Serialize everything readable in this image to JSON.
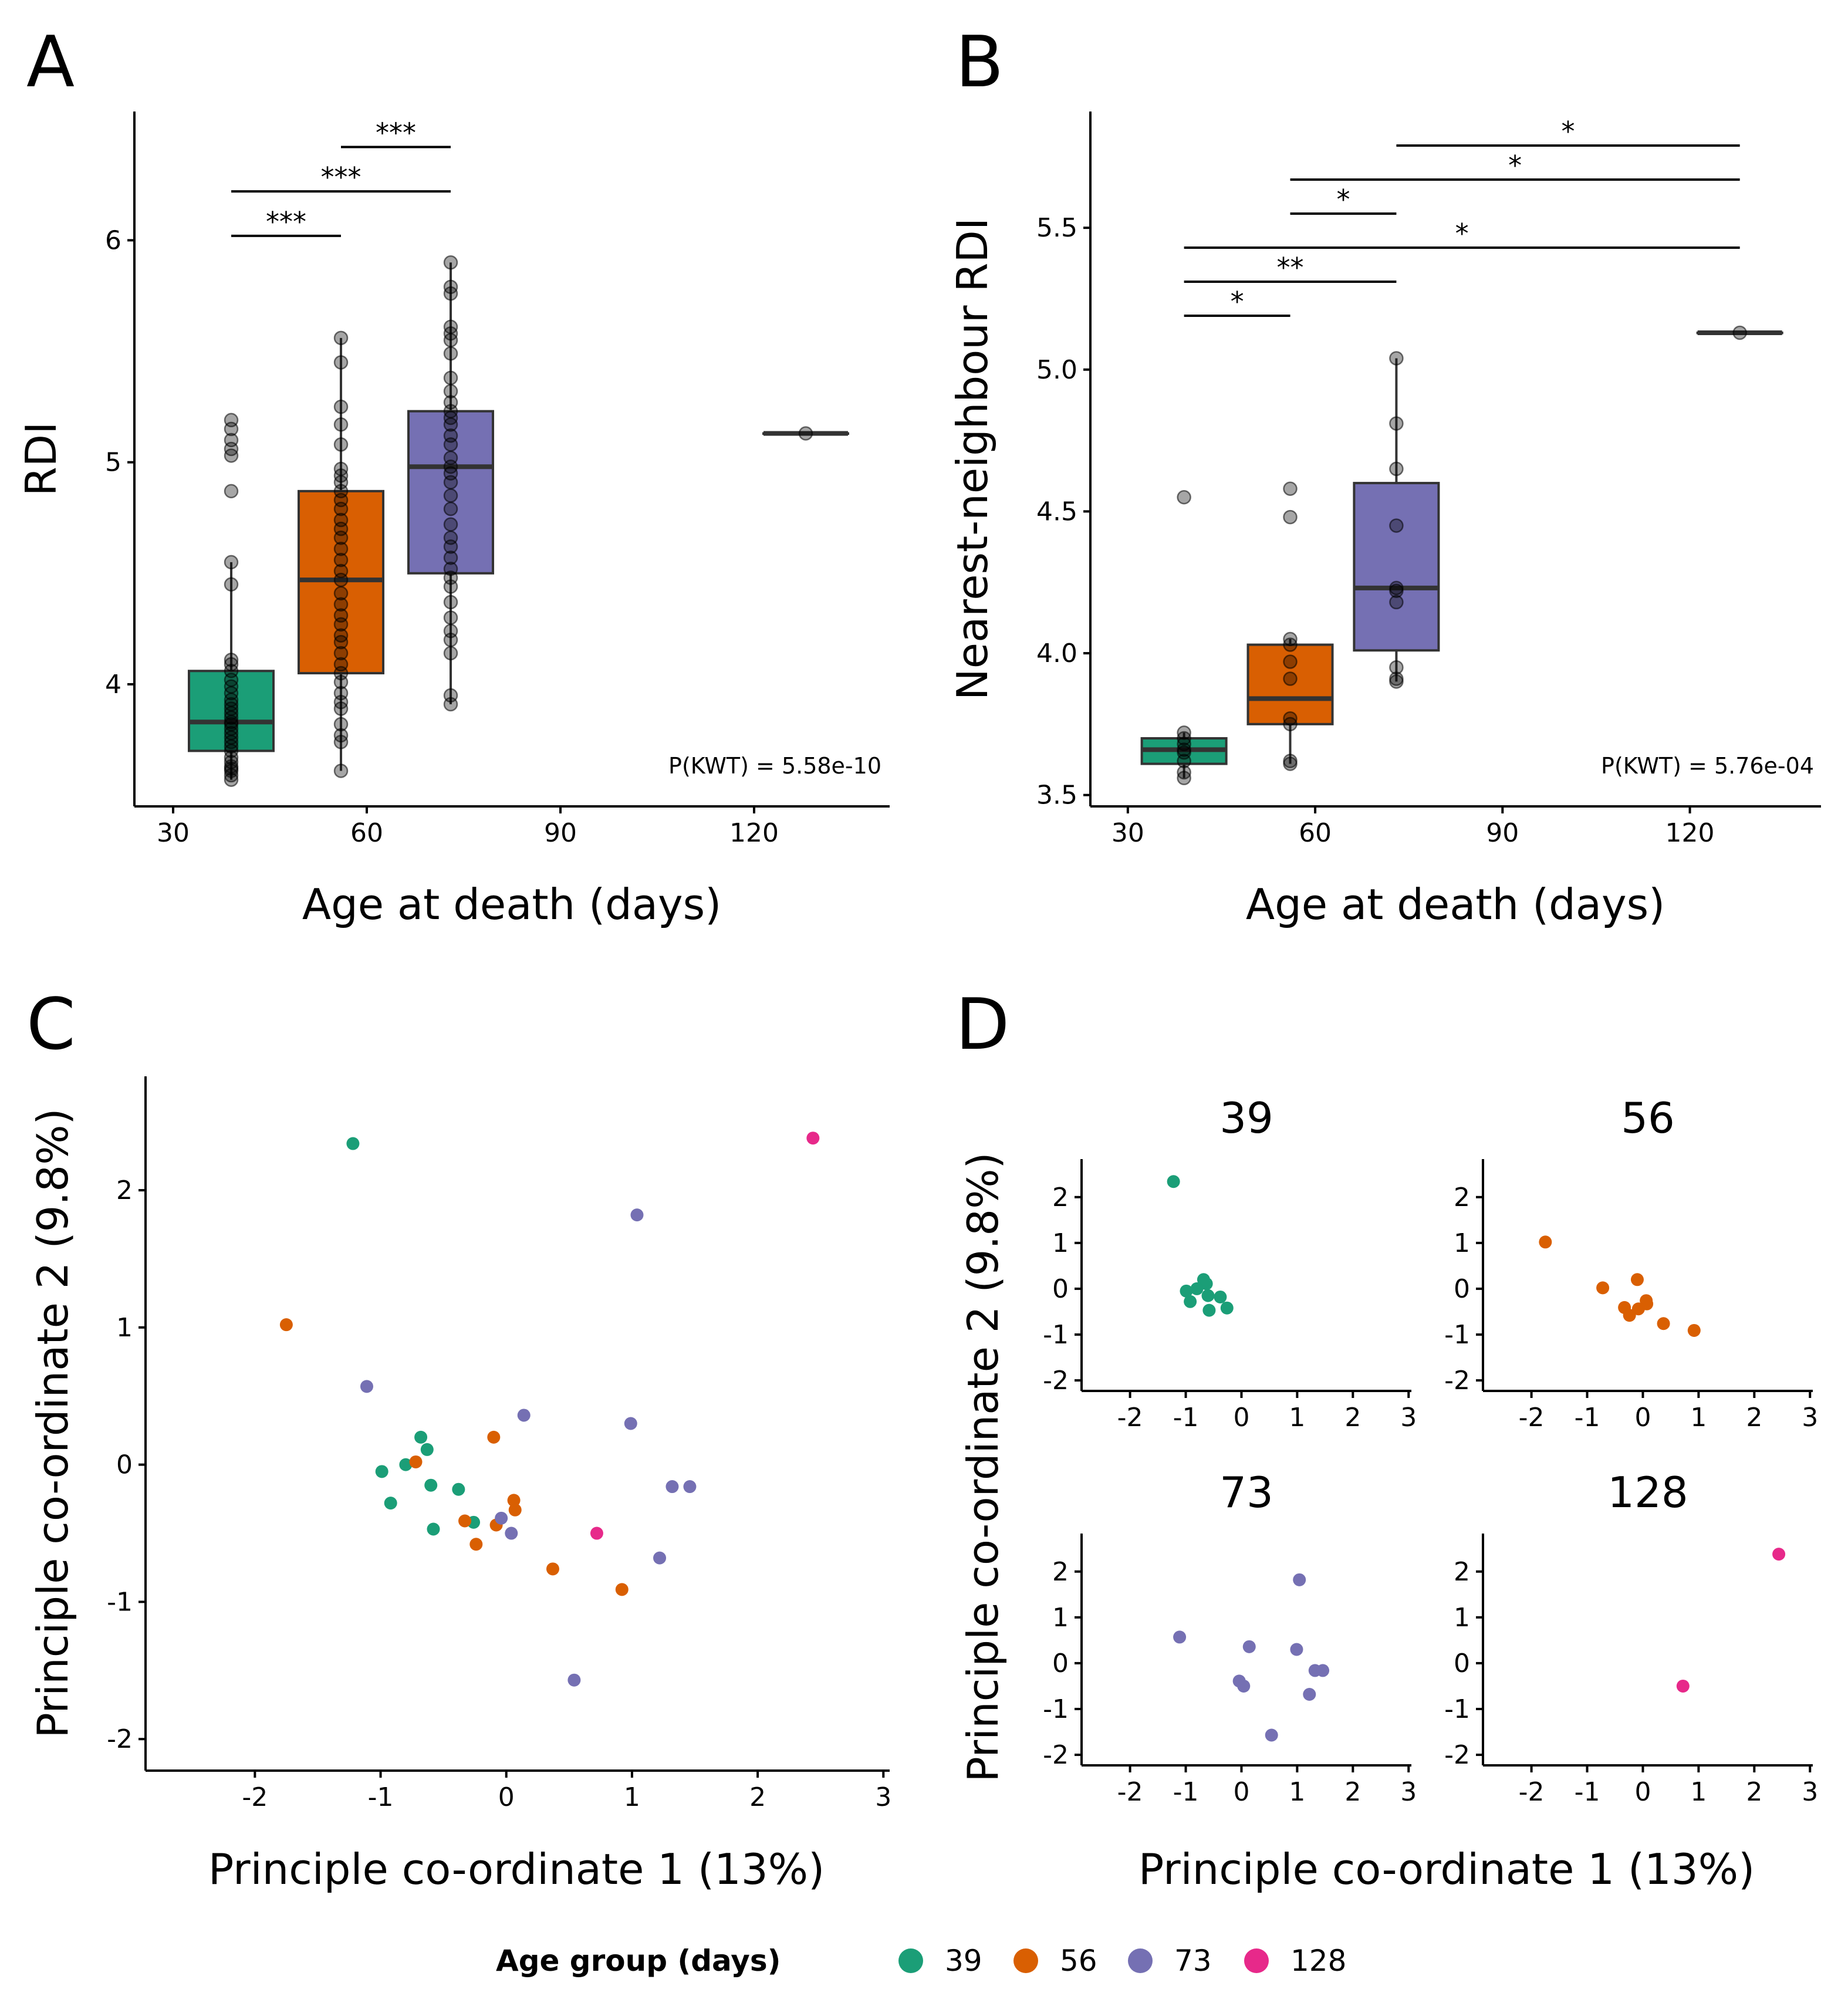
{
  "colors": {
    "39": "#1b9e77",
    "56": "#d95f02",
    "73": "#7570b3",
    "128": "#e7298a"
  },
  "legend": {
    "title": "Age group (days)",
    "entries": [
      "39",
      "56",
      "73",
      "128"
    ]
  },
  "chart_data": [
    {
      "panel": "A",
      "type": "box",
      "xlabel": "Age at death (days)",
      "ylabel": "RDI",
      "xlim": [
        24,
        141
      ],
      "ylim": [
        3.45,
        6.58
      ],
      "xticks": [
        30,
        60,
        90,
        120
      ],
      "yticks": [
        4,
        5,
        6
      ],
      "annotation": "P(KWT) = 5.58e-10",
      "groups": [
        {
          "x": 39,
          "group": "39",
          "q1": 3.7,
          "median": 3.83,
          "q3": 4.06,
          "whisker_low": 3.57,
          "whisker_high": 4.55,
          "points": [
            3.57,
            3.59,
            3.61,
            3.62,
            3.63,
            3.65,
            3.67,
            3.7,
            3.72,
            3.74,
            3.76,
            3.78,
            3.8,
            3.82,
            3.83,
            3.85,
            3.87,
            3.89,
            3.91,
            3.93,
            3.96,
            3.99,
            4.02,
            4.06,
            4.09,
            4.11,
            4.45,
            4.55,
            4.87,
            5.03,
            5.06,
            5.1,
            5.15,
            5.19
          ]
        },
        {
          "x": 56,
          "group": "56",
          "q1": 4.05,
          "median": 4.47,
          "q3": 4.87,
          "whisker_low": 3.61,
          "whisker_high": 5.56,
          "points": [
            3.61,
            3.74,
            3.77,
            3.82,
            3.89,
            3.92,
            3.96,
            4.01,
            4.05,
            4.09,
            4.14,
            4.19,
            4.22,
            4.27,
            4.31,
            4.36,
            4.41,
            4.47,
            4.51,
            4.56,
            4.61,
            4.66,
            4.7,
            4.74,
            4.79,
            4.83,
            4.87,
            4.91,
            4.94,
            4.97,
            5.08,
            5.17,
            5.25,
            5.45,
            5.56
          ]
        },
        {
          "x": 73,
          "group": "73",
          "q1": 4.5,
          "median": 4.98,
          "q3": 5.23,
          "whisker_low": 3.91,
          "whisker_high": 5.9,
          "points": [
            3.91,
            3.95,
            4.14,
            4.2,
            4.24,
            4.3,
            4.37,
            4.44,
            4.48,
            4.52,
            4.57,
            4.62,
            4.66,
            4.72,
            4.79,
            4.85,
            4.91,
            4.95,
            4.98,
            5.02,
            5.08,
            5.12,
            5.17,
            5.2,
            5.23,
            5.27,
            5.32,
            5.38,
            5.49,
            5.55,
            5.58,
            5.61,
            5.76,
            5.79,
            5.9
          ]
        },
        {
          "x": 128,
          "group": "128",
          "q1": 5.13,
          "median": 5.13,
          "q3": 5.13,
          "whisker_low": 5.13,
          "whisker_high": 5.13,
          "points": [
            5.13
          ]
        }
      ],
      "comparisons": [
        {
          "x1": 39,
          "x2": 56,
          "y": 6.02,
          "label": "***"
        },
        {
          "x1": 39,
          "x2": 73,
          "y": 6.22,
          "label": "***"
        },
        {
          "x1": 56,
          "x2": 73,
          "y": 6.42,
          "label": "***"
        }
      ]
    },
    {
      "panel": "B",
      "type": "box",
      "xlabel": "Age at death (days)",
      "ylabel": "Nearest-neighbour RDI",
      "xlim": [
        24,
        141
      ],
      "ylim": [
        3.46,
        5.91
      ],
      "xticks": [
        30,
        60,
        90,
        120
      ],
      "yticks": [
        3.5,
        4.0,
        4.5,
        5.0,
        5.5
      ],
      "annotation": "P(KWT) = 5.76e-04",
      "groups": [
        {
          "x": 39,
          "group": "39",
          "q1": 3.61,
          "median": 3.66,
          "q3": 3.7,
          "whisker_low": 3.56,
          "whisker_high": 3.72,
          "points": [
            3.56,
            3.58,
            3.62,
            3.65,
            3.66,
            3.68,
            3.7,
            3.72,
            4.55
          ]
        },
        {
          "x": 56,
          "group": "56",
          "q1": 3.75,
          "median": 3.84,
          "q3": 4.03,
          "whisker_low": 3.61,
          "whisker_high": 4.05,
          "points": [
            3.61,
            3.62,
            3.75,
            3.77,
            3.91,
            3.97,
            4.03,
            4.05,
            4.48,
            4.58
          ]
        },
        {
          "x": 73,
          "group": "73",
          "q1": 4.01,
          "median": 4.23,
          "q3": 4.6,
          "whisker_low": 3.9,
          "whisker_high": 5.04,
          "points": [
            3.9,
            3.91,
            3.95,
            4.18,
            4.22,
            4.23,
            4.45,
            4.65,
            4.81,
            5.04
          ]
        },
        {
          "x": 128,
          "group": "128",
          "q1": 5.13,
          "median": 5.13,
          "q3": 5.13,
          "whisker_low": 5.13,
          "whisker_high": 5.13,
          "points": [
            5.13
          ]
        }
      ],
      "comparisons": [
        {
          "x1": 39,
          "x2": 56,
          "y": 5.19,
          "label": "*"
        },
        {
          "x1": 39,
          "x2": 73,
          "y": 5.31,
          "label": "**"
        },
        {
          "x1": 39,
          "x2": 128,
          "y": 5.43,
          "label": "*"
        },
        {
          "x1": 56,
          "x2": 73,
          "y": 5.55,
          "label": "*"
        },
        {
          "x1": 56,
          "x2": 128,
          "y": 5.67,
          "label": "*"
        },
        {
          "x1": 73,
          "x2": 128,
          "y": 5.79,
          "label": "*"
        }
      ]
    },
    {
      "panel": "C",
      "type": "scatter",
      "xlabel": "Principle co-ordinate 1 (13%)",
      "ylabel": "Principle co-ordinate 2 (9.8%)",
      "xlim": [
        -2.87,
        3.05
      ],
      "ylim": [
        -2.23,
        2.83
      ],
      "xticks": [
        -2,
        -1,
        0,
        1,
        2,
        3
      ],
      "yticks": [
        -2,
        -1,
        0,
        1,
        2
      ],
      "points": [
        {
          "group": "39",
          "x": -1.22,
          "y": 2.34
        },
        {
          "group": "39",
          "x": -0.68,
          "y": 0.2
        },
        {
          "group": "39",
          "x": -0.63,
          "y": 0.11
        },
        {
          "group": "39",
          "x": -0.8,
          "y": 0.0
        },
        {
          "group": "39",
          "x": -0.99,
          "y": -0.05
        },
        {
          "group": "39",
          "x": -0.6,
          "y": -0.15
        },
        {
          "group": "39",
          "x": -0.38,
          "y": -0.18
        },
        {
          "group": "39",
          "x": -0.92,
          "y": -0.28
        },
        {
          "group": "39",
          "x": -0.26,
          "y": -0.42
        },
        {
          "group": "39",
          "x": -0.58,
          "y": -0.47
        },
        {
          "group": "56",
          "x": -1.75,
          "y": 1.02
        },
        {
          "group": "56",
          "x": -0.72,
          "y": 0.02
        },
        {
          "group": "56",
          "x": -0.1,
          "y": 0.2
        },
        {
          "group": "56",
          "x": 0.06,
          "y": -0.26
        },
        {
          "group": "56",
          "x": 0.07,
          "y": -0.33
        },
        {
          "group": "56",
          "x": -0.33,
          "y": -0.41
        },
        {
          "group": "56",
          "x": -0.08,
          "y": -0.44
        },
        {
          "group": "56",
          "x": -0.24,
          "y": -0.58
        },
        {
          "group": "56",
          "x": 0.37,
          "y": -0.76
        },
        {
          "group": "56",
          "x": 0.92,
          "y": -0.91
        },
        {
          "group": "73",
          "x": -1.11,
          "y": 0.57
        },
        {
          "group": "73",
          "x": 1.04,
          "y": 1.82
        },
        {
          "group": "73",
          "x": 0.14,
          "y": 0.36
        },
        {
          "group": "73",
          "x": 0.99,
          "y": 0.3
        },
        {
          "group": "73",
          "x": 1.32,
          "y": -0.16
        },
        {
          "group": "73",
          "x": 1.46,
          "y": -0.16
        },
        {
          "group": "73",
          "x": -0.04,
          "y": -0.39
        },
        {
          "group": "73",
          "x": 0.04,
          "y": -0.5
        },
        {
          "group": "73",
          "x": 1.22,
          "y": -0.68
        },
        {
          "group": "73",
          "x": 0.54,
          "y": -1.57
        },
        {
          "group": "128",
          "x": 2.44,
          "y": 2.38
        },
        {
          "group": "128",
          "x": 0.72,
          "y": -0.5
        }
      ]
    },
    {
      "panel": "D",
      "type": "scatter-facets",
      "xlabel": "Principle co-ordinate 1 (13%)",
      "ylabel": "Principle co-ordinate 2 (9.8%)",
      "xlim": [
        -2.87,
        3.05
      ],
      "ylim": [
        -2.23,
        2.83
      ],
      "xticks": [
        -2,
        -1,
        0,
        1,
        2,
        3
      ],
      "yticks": [
        -2,
        -1,
        0,
        1,
        2
      ],
      "facets": [
        "39",
        "56",
        "73",
        "128"
      ]
    }
  ]
}
